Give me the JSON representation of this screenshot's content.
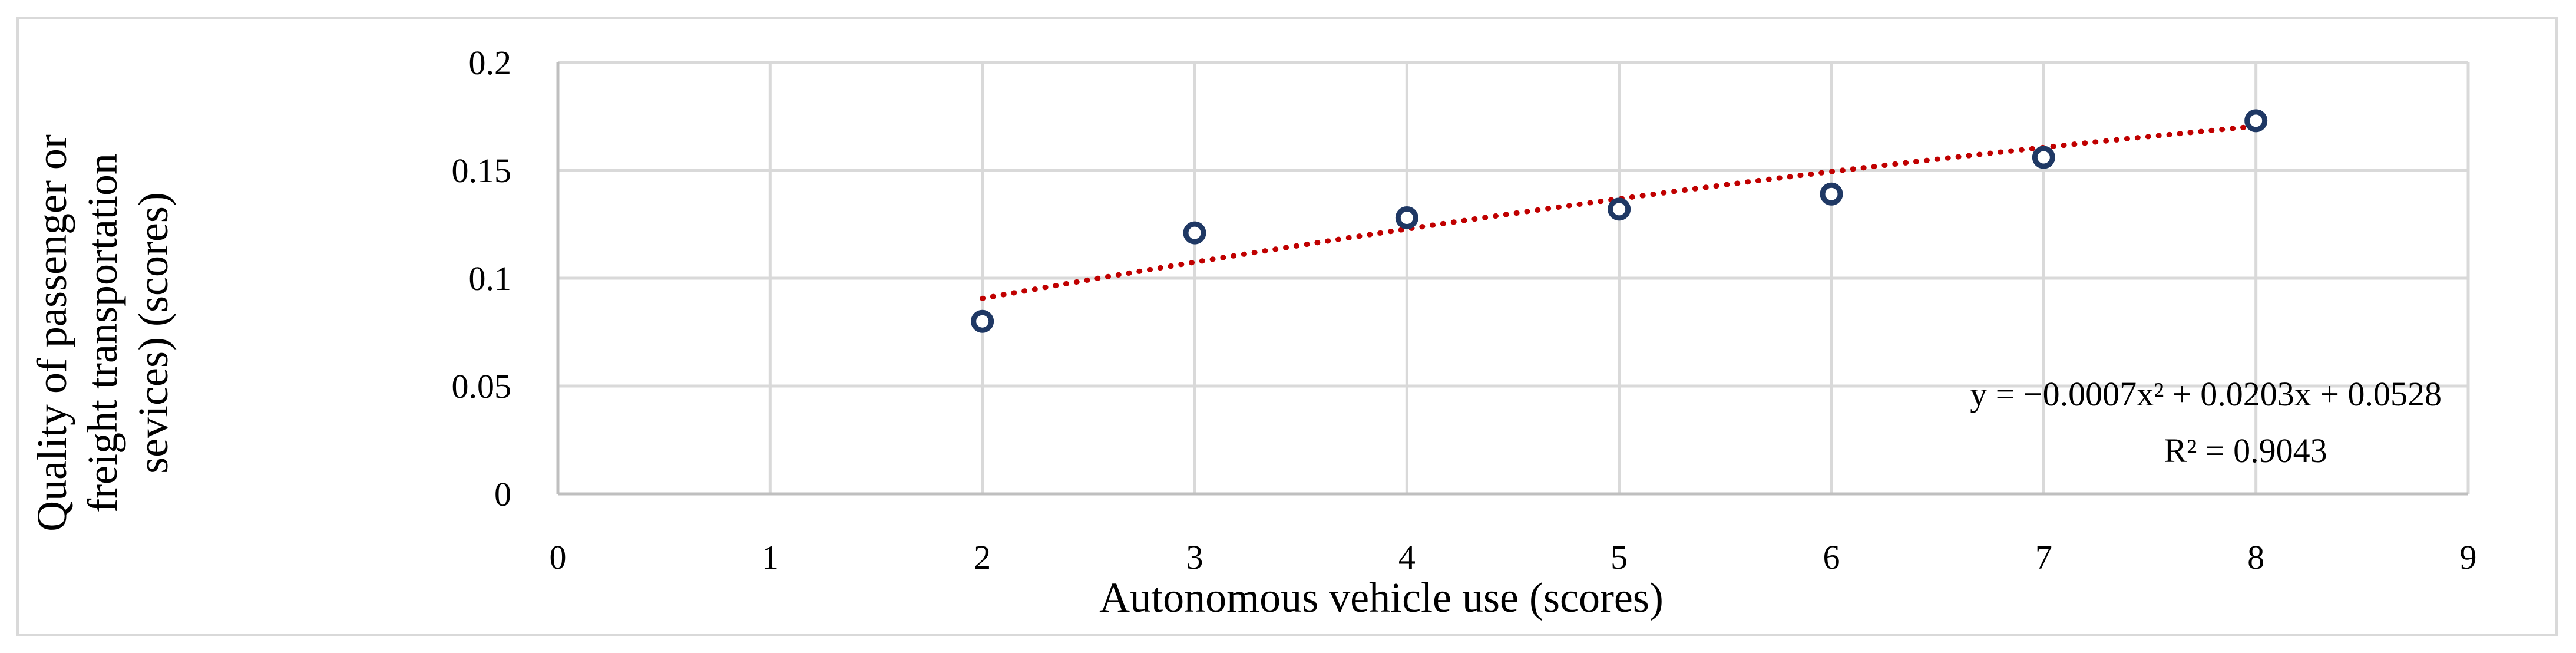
{
  "chart_data": {
    "type": "scatter",
    "title": "",
    "xlabel": "Autonomous vehicle use (scores)",
    "ylabel_lines": [
      "Quality of passenger or",
      "freight transportation",
      "sevices) (scores)"
    ],
    "xlim": [
      0,
      9
    ],
    "ylim": [
      0,
      0.2
    ],
    "x_ticks": [
      0,
      1,
      2,
      3,
      4,
      5,
      6,
      7,
      8,
      9
    ],
    "y_ticks": [
      0,
      0.05,
      0.1,
      0.15,
      0.2
    ],
    "x_tick_labels": [
      "0",
      "1",
      "2",
      "3",
      "4",
      "5",
      "6",
      "7",
      "8",
      "9"
    ],
    "y_tick_labels": [
      "0",
      "0.05",
      "0.1",
      "0.15",
      "0.2"
    ],
    "grid": true,
    "legend": "none",
    "series": [
      {
        "x": [
          2,
          3,
          4,
          5,
          6,
          7,
          8
        ],
        "values": [
          0.08,
          0.121,
          0.128,
          0.132,
          0.139,
          0.156,
          0.173
        ],
        "marker": "open-circle",
        "color": "#1f3864"
      }
    ],
    "trendline": {
      "type": "polynomial",
      "coefficients": [
        -0.0007,
        0.0203,
        0.0528
      ],
      "x_range": [
        2,
        8
      ],
      "color": "#c00000",
      "style": "dotted",
      "equation_text": "y = −0.0007x² + 0.0203x + 0.0528",
      "r2_text": "R² = 0.9043"
    }
  }
}
